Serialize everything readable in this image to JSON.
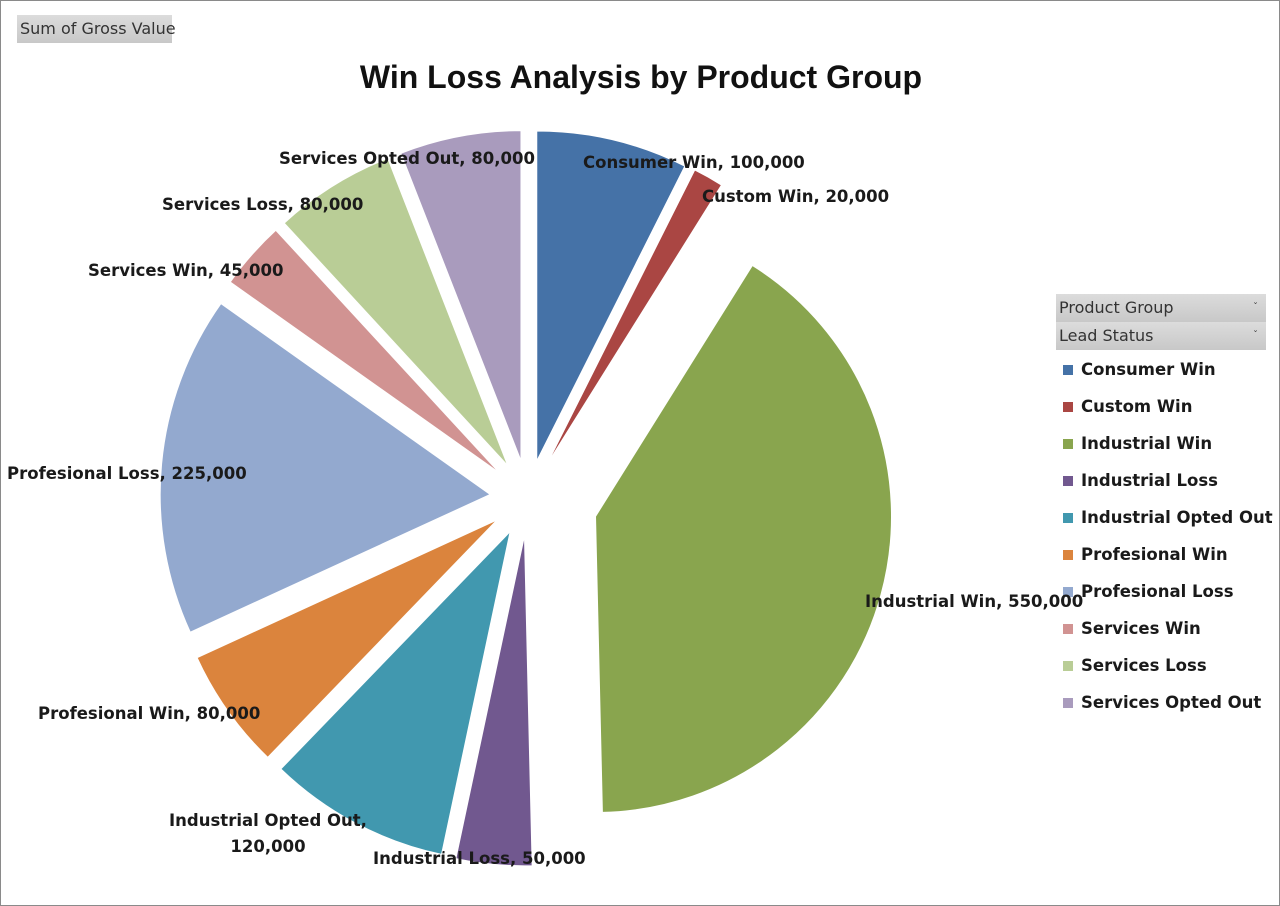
{
  "pivot": {
    "value_field": "Sum of Gross Value",
    "axis_fields": [
      {
        "label": "Product Group",
        "arrow": "ˇ"
      },
      {
        "label": "Lead Status",
        "arrow": "ˇ"
      }
    ]
  },
  "chart_data": {
    "type": "pie",
    "title": "Win Loss Analysis by Product Group",
    "exploded": true,
    "start_angle_deg": 0,
    "direction": "clockwise",
    "legend_position": "right",
    "slices": [
      {
        "name": "Consumer Win",
        "value": 100000,
        "label": "Consumer Win, 100,000",
        "color": "#4572A7"
      },
      {
        "name": "Custom Win",
        "value": 20000,
        "label": "Custom Win, 20,000",
        "color": "#AA4643"
      },
      {
        "name": "Industrial Win",
        "value": 550000,
        "label": "Industrial Win, 550,000",
        "color": "#89A54E"
      },
      {
        "name": "Industrial Loss",
        "value": 50000,
        "label": "Industrial Loss, 50,000",
        "color": "#71588F"
      },
      {
        "name": "Industrial Opted Out",
        "value": 120000,
        "label": "Industrial Opted Out, 120,000",
        "label_lines": [
          "Industrial Opted Out,",
          "120,000"
        ],
        "color": "#4198AF"
      },
      {
        "name": "Profesional Win",
        "value": 80000,
        "label": "Profesional Win, 80,000",
        "color": "#DB843D"
      },
      {
        "name": "Profesional Loss",
        "value": 225000,
        "label": "Profesional Loss, 225,000",
        "color": "#93A9CF"
      },
      {
        "name": "Services Win",
        "value": 45000,
        "label": "Services Win, 45,000",
        "color": "#D19392"
      },
      {
        "name": "Services Loss",
        "value": 80000,
        "label": "Services Loss, 80,000",
        "color": "#B9CD96"
      },
      {
        "name": "Services Opted Out",
        "value": 80000,
        "label": "Services Opted Out, 80,000",
        "color": "#A99BBD"
      }
    ]
  }
}
